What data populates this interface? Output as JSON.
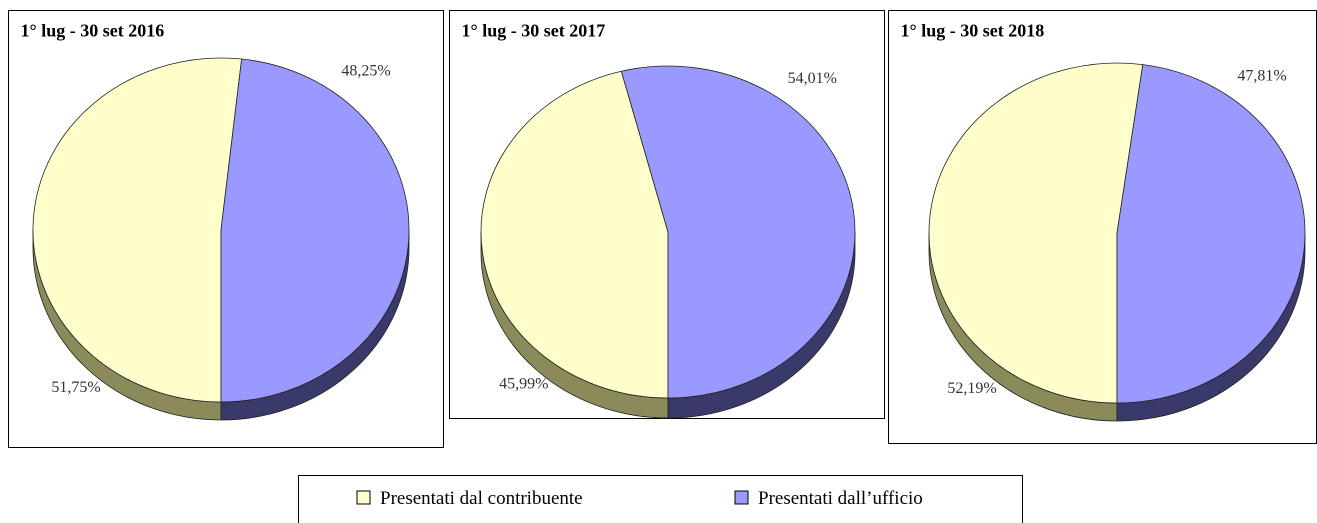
{
  "legend": [
    {
      "name": "Presentati dal contribuente",
      "color": "#ffffcc"
    },
    {
      "name": "Presentati dall’ufficio",
      "color": "#9999ff"
    }
  ],
  "chart_data": [
    {
      "type": "pie",
      "title": "1° lug - 30 set 2016",
      "values": [
        51.75,
        48.25
      ],
      "value_labels": [
        "51,75%",
        "48,25%"
      ]
    },
    {
      "type": "pie",
      "title": "1° lug - 30 set 2017",
      "values": [
        45.99,
        54.01
      ],
      "value_labels": [
        "45,99%",
        "54,01%"
      ]
    },
    {
      "type": "pie",
      "title": "1° lug - 30 set 2018",
      "values": [
        52.19,
        47.81
      ],
      "value_labels": [
        "52,19%",
        "47,81%"
      ]
    }
  ]
}
